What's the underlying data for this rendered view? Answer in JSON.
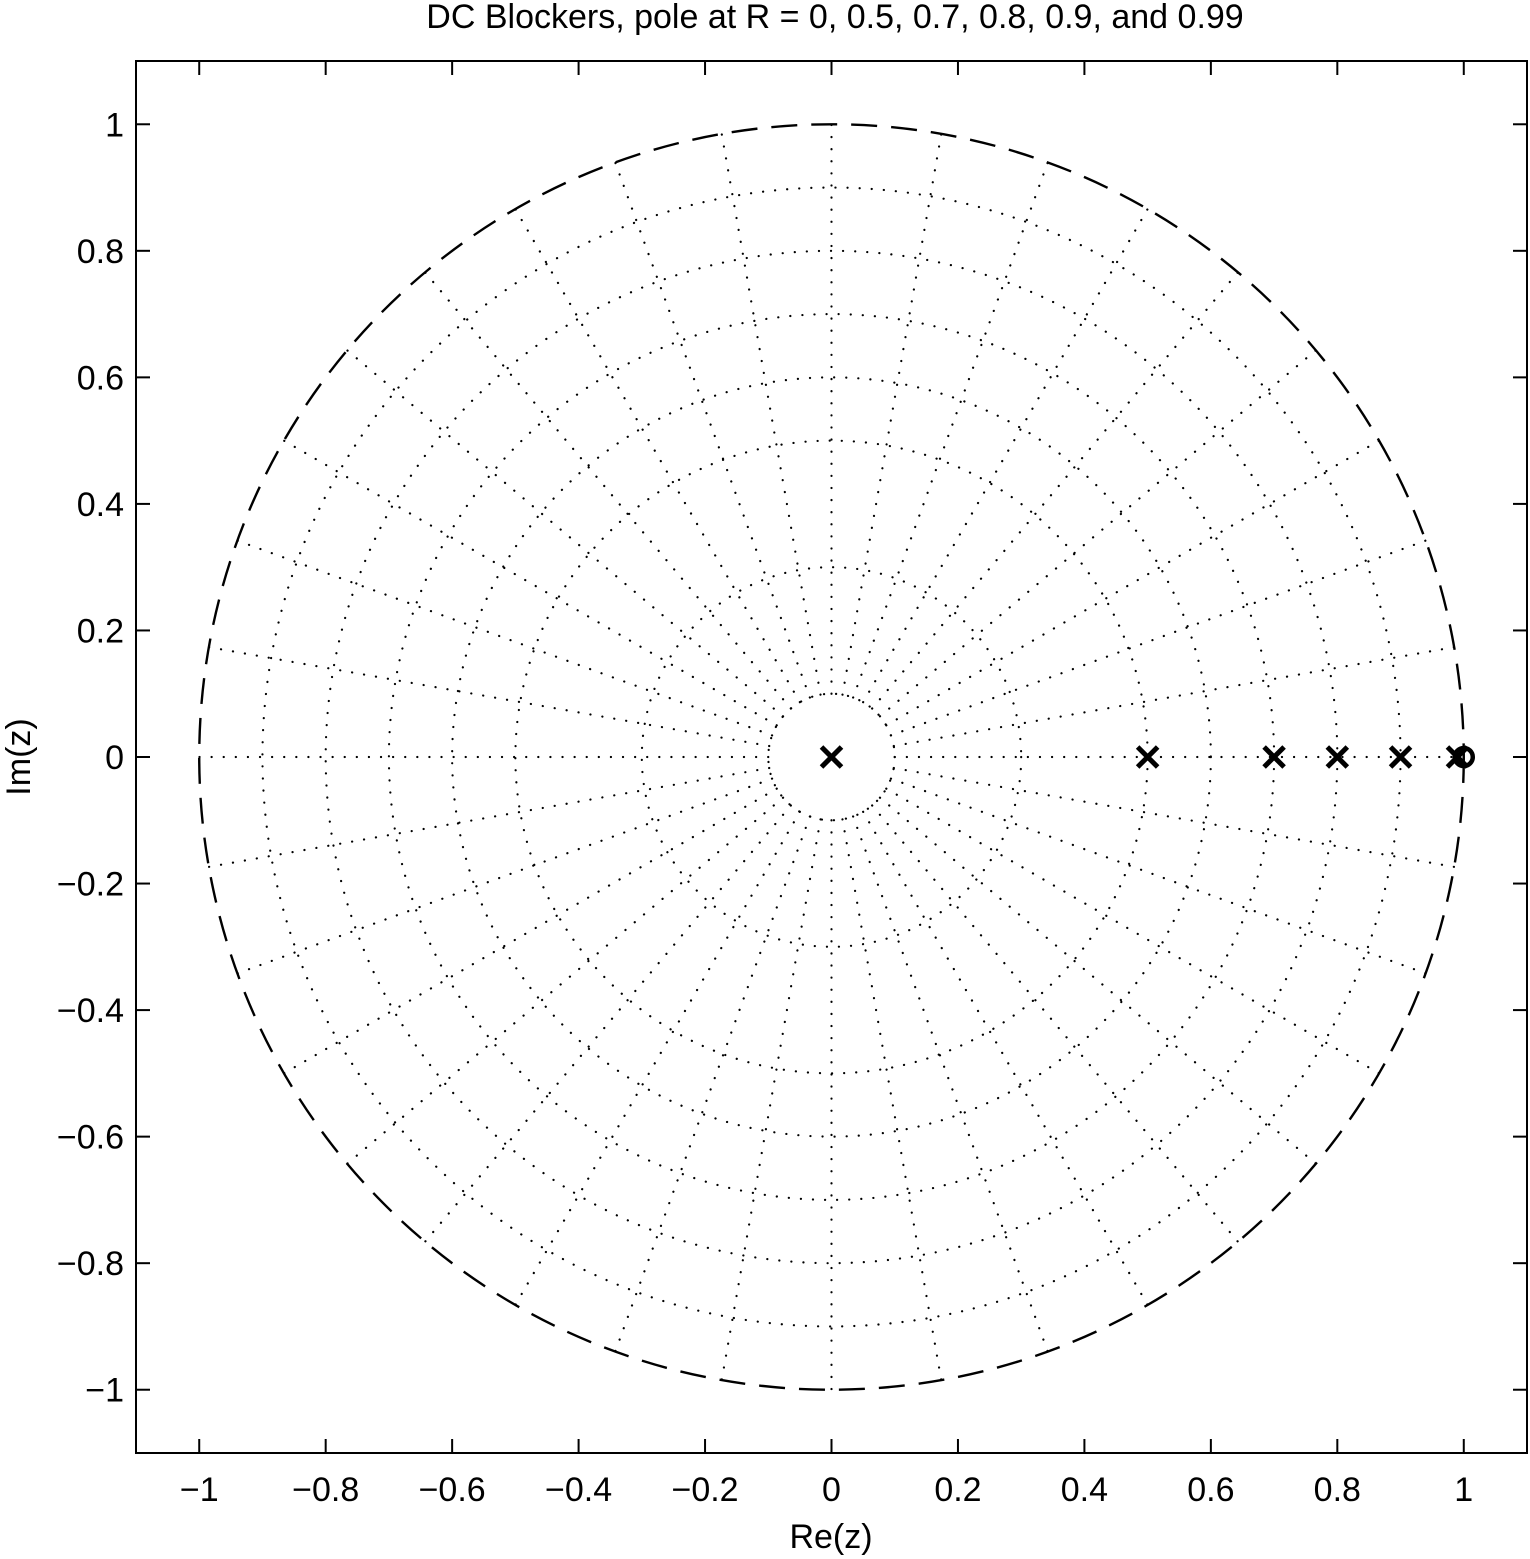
{
  "chart_data": {
    "type": "scatter",
    "title": "DC Blockers, pole at R = 0, 0.5, 0.7, 0.8, 0.9, and 0.99",
    "xlabel": "Re(z)",
    "ylabel": "Im(z)",
    "xlim": [
      -1.1,
      1.1
    ],
    "ylim": [
      -1.1,
      1.1
    ],
    "xticks": [
      -1,
      -0.8,
      -0.6,
      -0.4,
      -0.2,
      0,
      0.2,
      0.4,
      0.6,
      0.8,
      1
    ],
    "yticks": [
      1,
      0.8,
      0.6,
      0.4,
      0.2,
      0,
      -0.2,
      -0.4,
      -0.6,
      -0.8,
      -1
    ],
    "xtick_labels": [
      "−1",
      "−0.8",
      "−0.6",
      "−0.4",
      "−0.2",
      "0",
      "0.2",
      "0.4",
      "0.6",
      "0.8",
      "1"
    ],
    "ytick_labels": [
      "1",
      "0.8",
      "0.6",
      "0.4",
      "0.2",
      "0",
      "−0.2",
      "−0.4",
      "−0.6",
      "−0.8",
      "−1"
    ],
    "unit_circle": {
      "radius": 1,
      "style": "dashed"
    },
    "polar_grid": {
      "style": "dotted",
      "radii": [
        0.1,
        0.3,
        0.5,
        0.6,
        0.7,
        0.8,
        0.9
      ],
      "spoke_angles_deg": [
        0,
        10,
        20,
        30,
        40,
        50,
        60,
        70,
        80,
        90,
        100,
        110,
        120,
        130,
        140,
        150,
        160,
        170,
        180,
        190,
        200,
        210,
        220,
        230,
        240,
        250,
        260,
        270,
        280,
        290,
        300,
        310,
        320,
        330,
        340,
        350
      ]
    },
    "poles": [
      {
        "re": 0,
        "im": 0
      },
      {
        "re": 0.5,
        "im": 0
      },
      {
        "re": 0.7,
        "im": 0
      },
      {
        "re": 0.8,
        "im": 0
      },
      {
        "re": 0.9,
        "im": 0
      },
      {
        "re": 0.99,
        "im": 0
      }
    ],
    "zeros": [
      {
        "re": 1,
        "im": 0
      }
    ],
    "colors": {
      "line": "#000000",
      "background": "#ffffff"
    }
  }
}
